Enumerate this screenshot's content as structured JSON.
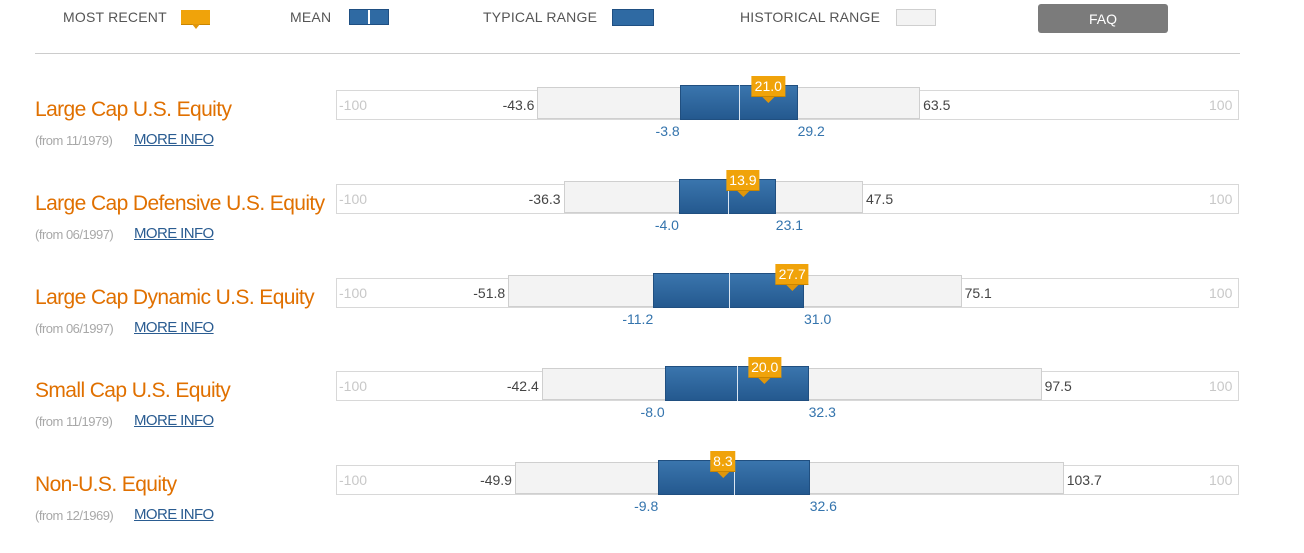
{
  "legend": {
    "most_recent": "MOST RECENT",
    "mean": "MEAN",
    "typical_range": "TYPICAL RANGE",
    "historical_range": "HISTORICAL RANGE",
    "faq": "FAQ"
  },
  "colors": {
    "title": "#e07000",
    "typical": "#2f6aa3",
    "recent": "#f0a30a",
    "historical": "#f3f3f3",
    "link": "#2a5c91"
  },
  "chart_data": {
    "type": "range",
    "axis_min": -100,
    "axis_max": 100,
    "axis_min_label": "-100",
    "axis_max_label": "100",
    "more_info_label": "MORE INFO",
    "rows": [
      {
        "title": "Large Cap U.S. Equity",
        "from": "(from 11/1979)",
        "hist_lo": -43.6,
        "hist_hi": 63.5,
        "hist_lo_label": "-43.6",
        "hist_hi_label": "63.5",
        "typ_lo": -3.8,
        "typ_hi": 29.2,
        "typ_lo_label": "-3.8",
        "typ_hi_label": "29.2",
        "mean": 12.7,
        "recent": 21.0,
        "recent_label": "21.0"
      },
      {
        "title": "Large Cap Defensive U.S. Equity",
        "from": "(from 06/1997)",
        "hist_lo": -36.3,
        "hist_hi": 47.5,
        "hist_lo_label": "-36.3",
        "hist_hi_label": "47.5",
        "typ_lo": -4.0,
        "typ_hi": 23.1,
        "typ_lo_label": "-4.0",
        "typ_hi_label": "23.1",
        "mean": 9.6,
        "recent": 13.9,
        "recent_label": "13.9"
      },
      {
        "title": "Large Cap Dynamic U.S. Equity",
        "from": "(from 06/1997)",
        "hist_lo": -51.8,
        "hist_hi": 75.1,
        "hist_lo_label": "-51.8",
        "hist_hi_label": "75.1",
        "typ_lo": -11.2,
        "typ_hi": 31.0,
        "typ_lo_label": "-11.2",
        "typ_hi_label": "31.0",
        "mean": 9.9,
        "recent": 27.7,
        "recent_label": "27.7"
      },
      {
        "title": "Small Cap U.S. Equity",
        "from": "(from 11/1979)",
        "hist_lo": -42.4,
        "hist_hi": 97.5,
        "hist_lo_label": "-42.4",
        "hist_hi_label": "97.5",
        "typ_lo": -8.0,
        "typ_hi": 32.3,
        "typ_lo_label": "-8.0",
        "typ_hi_label": "32.3",
        "mean": 12.2,
        "recent": 20.0,
        "recent_label": "20.0"
      },
      {
        "title": "Non-U.S. Equity",
        "from": "(from 12/1969)",
        "hist_lo": -49.9,
        "hist_hi": 103.7,
        "hist_lo_label": "-49.9",
        "hist_hi_label": "103.7",
        "typ_lo": -9.8,
        "typ_hi": 32.6,
        "typ_lo_label": "-9.8",
        "typ_hi_label": "32.6",
        "mean": 11.4,
        "recent": 8.3,
        "recent_label": "8.3"
      }
    ]
  }
}
